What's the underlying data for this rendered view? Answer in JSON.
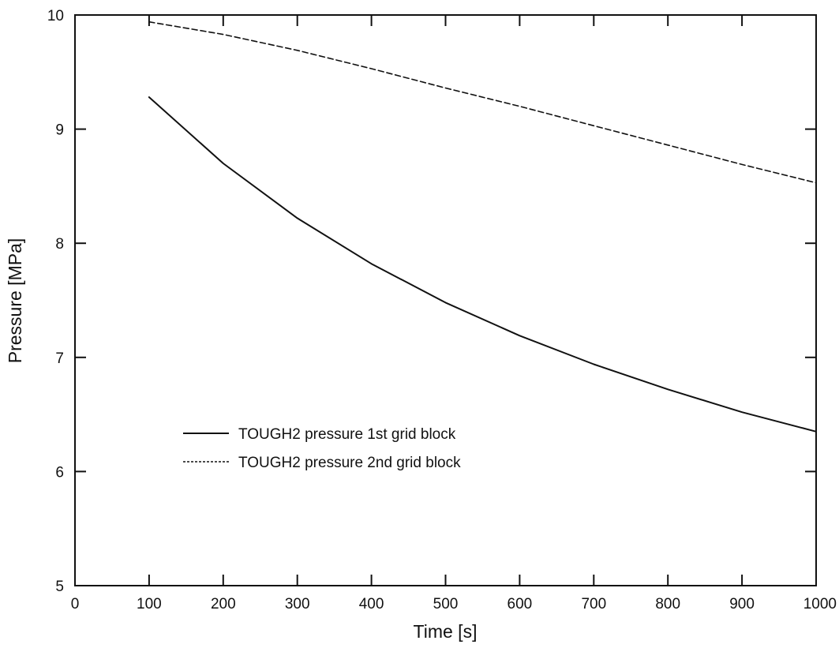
{
  "chart_data": {
    "type": "line",
    "title": "",
    "xlabel": "Time [s]",
    "ylabel": "Pressure [MPa]",
    "xlim": [
      0,
      1000
    ],
    "ylim": [
      5,
      10
    ],
    "x_ticks": [
      "0",
      "100",
      "200",
      "300",
      "400",
      "500",
      "600",
      "700",
      "800",
      "900",
      "1000"
    ],
    "y_ticks": [
      "5",
      "6",
      "7",
      "8",
      "9",
      "10"
    ],
    "grid": false,
    "legend_position": "center-left",
    "x": [
      100,
      200,
      300,
      400,
      500,
      600,
      700,
      800,
      900,
      1000
    ],
    "series": [
      {
        "name": "TOUGH2 pressure 1st grid block",
        "line_style": "solid",
        "color": "#111111",
        "values": [
          9.28,
          8.7,
          8.22,
          7.82,
          7.48,
          7.19,
          6.94,
          6.72,
          6.52,
          6.35
        ]
      },
      {
        "name": "TOUGH2 pressure 2nd grid block",
        "line_style": "dashed",
        "color": "#111111",
        "values": [
          9.94,
          9.83,
          9.69,
          9.53,
          9.36,
          9.2,
          9.03,
          8.86,
          8.69,
          8.53
        ]
      }
    ]
  }
}
